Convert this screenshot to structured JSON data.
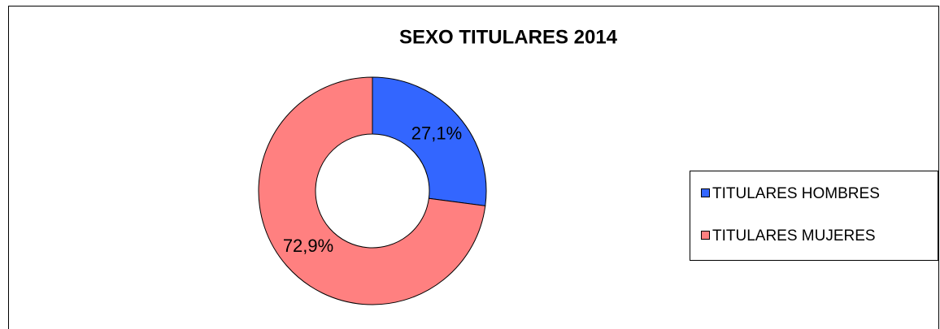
{
  "chart_data": {
    "type": "pie",
    "title": "SEXO TITULARES 2014",
    "categories": [
      "TITULARES HOMBRES",
      "TITULARES MUJERES"
    ],
    "values": [
      27.1,
      72.9
    ],
    "value_labels": [
      "27,1%",
      "72,9%"
    ],
    "colors": [
      "#3366ff",
      "#ff8080"
    ],
    "donut": true,
    "legend": "right"
  }
}
